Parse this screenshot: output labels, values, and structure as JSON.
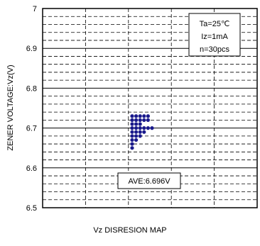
{
  "chart_data": {
    "type": "scatter",
    "ylabel": "ZENER VOLTAGE:Vz(V)",
    "ylim": [
      6.5,
      7.0
    ],
    "yticks": [
      "6.5",
      "6.6",
      "6.7",
      "6.8",
      "6.9",
      "7"
    ],
    "grid": true,
    "conditions": [
      "Ta=25℃",
      "Iz=1mA",
      "n=30pcs"
    ],
    "conditions_position": "top-right",
    "average_label": "AVE:6.696V",
    "caption": "Vz DISRESION MAP",
    "marker_color": "#1a1a8c",
    "points": [
      {
        "x": 1,
        "y": 6.65
      },
      {
        "x": 1,
        "y": 6.66
      },
      {
        "x": 1,
        "y": 6.67
      },
      {
        "x": 1,
        "y": 6.68
      },
      {
        "x": 1,
        "y": 6.69
      },
      {
        "x": 1,
        "y": 6.7
      },
      {
        "x": 1,
        "y": 6.71
      },
      {
        "x": 1,
        "y": 6.72
      },
      {
        "x": 1,
        "y": 6.73
      },
      {
        "x": 2,
        "y": 6.67
      },
      {
        "x": 2,
        "y": 6.68
      },
      {
        "x": 2,
        "y": 6.69
      },
      {
        "x": 2,
        "y": 6.7
      },
      {
        "x": 2,
        "y": 6.71
      },
      {
        "x": 2,
        "y": 6.72
      },
      {
        "x": 2,
        "y": 6.73
      },
      {
        "x": 3,
        "y": 6.68
      },
      {
        "x": 3,
        "y": 6.69
      },
      {
        "x": 3,
        "y": 6.7
      },
      {
        "x": 3,
        "y": 6.71
      },
      {
        "x": 3,
        "y": 6.72
      },
      {
        "x": 3,
        "y": 6.73
      },
      {
        "x": 4,
        "y": 6.69
      },
      {
        "x": 4,
        "y": 6.7
      },
      {
        "x": 4,
        "y": 6.72
      },
      {
        "x": 4,
        "y": 6.73
      },
      {
        "x": 5,
        "y": 6.7
      },
      {
        "x": 5,
        "y": 6.72
      },
      {
        "x": 5,
        "y": 6.73
      },
      {
        "x": 6,
        "y": 6.7
      }
    ]
  }
}
